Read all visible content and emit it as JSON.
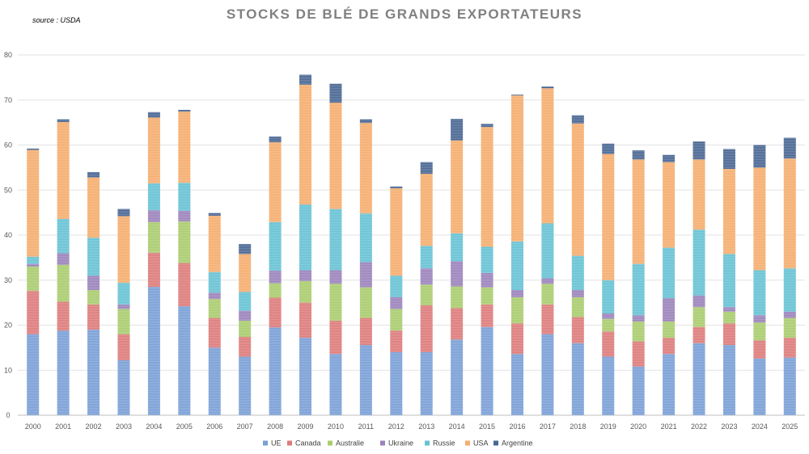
{
  "chart_data": {
    "type": "bar",
    "stacked": true,
    "title": "STOCKS DE BLÉ DE GRANDS EXPORTATEURS",
    "source": "source : USDA",
    "xlabel": "",
    "ylabel": "",
    "ylim": [
      0,
      80
    ],
    "yticks": [
      0,
      10,
      20,
      30,
      40,
      50,
      60,
      70,
      80
    ],
    "grid": true,
    "legend_position": "bottom",
    "categories": [
      "2000",
      "2001",
      "2002",
      "2003",
      "2004",
      "2005",
      "2006",
      "2007",
      "2008",
      "2009",
      "2010",
      "2011",
      "2012",
      "2013",
      "2014",
      "2015",
      "2016",
      "2017",
      "2018",
      "2019",
      "2020",
      "2021",
      "2022",
      "2023",
      "2024",
      "2025"
    ],
    "series": [
      {
        "name": "UE",
        "color": "#7a9fd6",
        "values": [
          18.0,
          18.8,
          19.0,
          12.2,
          28.5,
          24.2,
          15.0,
          13.0,
          19.5,
          17.2,
          13.6,
          15.6,
          14.0,
          14.0,
          16.8,
          19.6,
          13.6,
          18.0,
          16.0,
          13.0,
          10.8,
          13.6,
          16.0,
          15.6,
          12.6,
          12.8
        ]
      },
      {
        "name": "Canada",
        "color": "#dd7b7b",
        "values": [
          9.6,
          6.4,
          5.6,
          5.8,
          7.6,
          9.6,
          6.6,
          4.4,
          6.6,
          7.8,
          7.4,
          6.0,
          4.8,
          10.4,
          7.0,
          5.0,
          6.8,
          6.6,
          5.8,
          5.6,
          5.6,
          3.6,
          3.6,
          4.8,
          4.0,
          4.4
        ]
      },
      {
        "name": "Australie",
        "color": "#a9cc6e",
        "values": [
          5.4,
          8.2,
          3.2,
          5.6,
          6.8,
          9.2,
          4.2,
          3.6,
          3.2,
          4.8,
          8.2,
          6.8,
          4.8,
          4.6,
          4.8,
          3.8,
          5.8,
          4.6,
          4.4,
          2.8,
          4.4,
          3.6,
          4.4,
          2.6,
          4.0,
          4.4
        ]
      },
      {
        "name": "Ukraine",
        "color": "#9b83bb",
        "values": [
          0.6,
          2.6,
          3.2,
          1.0,
          2.6,
          2.4,
          1.4,
          2.2,
          2.8,
          2.4,
          3.0,
          5.6,
          2.6,
          3.6,
          5.6,
          3.2,
          1.6,
          1.2,
          1.6,
          1.2,
          1.4,
          5.2,
          2.6,
          1.0,
          1.6,
          1.4
        ]
      },
      {
        "name": "Russie",
        "color": "#67c2d4",
        "values": [
          1.6,
          7.6,
          8.4,
          4.8,
          6.0,
          6.2,
          4.6,
          4.2,
          10.8,
          14.6,
          13.6,
          10.8,
          4.8,
          5.0,
          6.2,
          5.8,
          10.8,
          12.2,
          7.6,
          7.4,
          11.4,
          11.2,
          14.6,
          11.8,
          10.0,
          9.6
        ]
      },
      {
        "name": "USA",
        "color": "#f5ad6e",
        "values": [
          23.7,
          21.5,
          13.4,
          14.8,
          14.6,
          15.8,
          12.5,
          8.4,
          17.7,
          26.6,
          23.6,
          20.1,
          19.4,
          16.0,
          20.6,
          26.6,
          32.4,
          30.0,
          29.4,
          28.0,
          23.2,
          19.0,
          15.6,
          18.9,
          22.8,
          24.4
        ]
      },
      {
        "name": "Argentine",
        "color": "#4a6793",
        "values": [
          0.3,
          0.6,
          1.2,
          1.6,
          1.2,
          0.4,
          0.6,
          2.2,
          1.3,
          2.2,
          4.2,
          0.8,
          0.4,
          2.6,
          4.8,
          0.7,
          0.2,
          0.4,
          1.8,
          2.3,
          2.0,
          1.6,
          4.0,
          4.4,
          5.0,
          4.6
        ]
      }
    ]
  }
}
